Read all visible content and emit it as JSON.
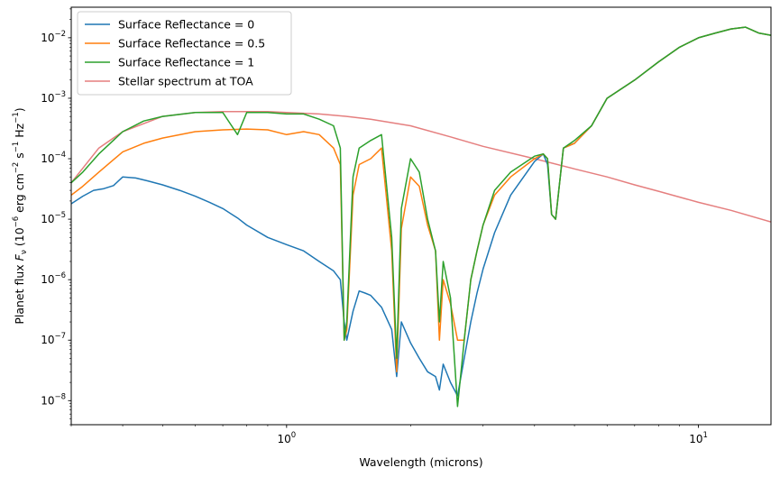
{
  "chart_data": {
    "type": "line",
    "xlabel": "Wavelength (microns)",
    "ylabel": "Planet flux F_ν (10⁻⁶ erg cm⁻² s⁻¹ Hz⁻¹)",
    "ylabel_parts": {
      "pre": "Planet flux ",
      "sym": "F",
      "sub": "ν",
      "open": " (10",
      "e1": "−6",
      "mid1": " erg cm",
      "e2": "−2",
      "mid2": " s",
      "e3": "−1",
      "mid3": " Hz",
      "e4": "−1",
      "close": ")"
    },
    "x_scale": "log",
    "y_scale": "log",
    "xlim": [
      0.3,
      15
    ],
    "ylim": [
      4e-09,
      0.032
    ],
    "x_ticks": [
      {
        "value": 1,
        "base": "10",
        "exp": "0"
      },
      {
        "value": 10,
        "base": "10",
        "exp": "1"
      }
    ],
    "y_ticks": [
      {
        "value": 1e-08,
        "base": "10",
        "exp": "−8"
      },
      {
        "value": 1e-07,
        "base": "10",
        "exp": "−7"
      },
      {
        "value": 1e-06,
        "base": "10",
        "exp": "−6"
      },
      {
        "value": 1e-05,
        "base": "10",
        "exp": "−5"
      },
      {
        "value": 0.0001,
        "base": "10",
        "exp": "−4"
      },
      {
        "value": 0.001,
        "base": "10",
        "exp": "−3"
      },
      {
        "value": 0.01,
        "base": "10",
        "exp": "−2"
      }
    ],
    "grid": false,
    "legend_position": "top-left",
    "series": [
      {
        "name": "Surface Reflectance = 0",
        "color": "#1f77b4",
        "x": [
          0.3,
          0.32,
          0.34,
          0.36,
          0.38,
          0.4,
          0.43,
          0.46,
          0.5,
          0.55,
          0.6,
          0.65,
          0.7,
          0.76,
          0.8,
          0.9,
          1.0,
          1.1,
          1.2,
          1.3,
          1.35,
          1.38,
          1.4,
          1.45,
          1.5,
          1.55,
          1.6,
          1.7,
          1.8,
          1.85,
          1.9,
          2.0,
          2.1,
          2.2,
          2.3,
          2.35,
          2.4,
          2.5,
          2.6,
          2.7,
          2.8,
          2.9,
          3.0,
          3.2,
          3.5,
          4.0,
          4.2,
          4.3,
          4.4,
          4.5,
          4.7,
          5.0,
          5.5,
          6.0,
          7.0,
          8.0,
          9.0,
          10.0,
          11.0,
          12.0,
          13.0,
          14.0,
          15.0
        ],
        "y": [
          1.8e-05,
          2.4e-05,
          3e-05,
          3.2e-05,
          3.6e-05,
          5e-05,
          4.8e-05,
          4.3e-05,
          3.7e-05,
          3e-05,
          2.4e-05,
          1.9e-05,
          1.5e-05,
          1.05e-05,
          8e-06,
          5e-06,
          3.8e-06,
          3e-06,
          2e-06,
          1.4e-06,
          1e-06,
          2e-07,
          1e-07,
          3e-07,
          6.5e-07,
          6e-07,
          5.5e-07,
          3.5e-07,
          1.5e-07,
          2.5e-08,
          2e-07,
          9e-08,
          5e-08,
          3e-08,
          2.5e-08,
          1.5e-08,
          4e-08,
          2e-08,
          1.2e-08,
          5e-08,
          2e-07,
          6e-07,
          1.5e-06,
          6e-06,
          2.5e-05,
          9e-05,
          0.00012,
          8e-05,
          1.2e-05,
          1e-05,
          0.00015,
          0.00018,
          0.00035,
          0.001,
          0.002,
          0.004,
          0.007,
          0.01,
          0.012,
          0.014,
          0.015,
          0.012,
          0.011
        ]
      },
      {
        "name": "Surface Reflectance = 0.5",
        "color": "#ff7f0e",
        "x": [
          0.3,
          0.32,
          0.35,
          0.4,
          0.45,
          0.5,
          0.6,
          0.7,
          0.8,
          0.9,
          1.0,
          1.1,
          1.2,
          1.3,
          1.35,
          1.38,
          1.4,
          1.45,
          1.5,
          1.6,
          1.7,
          1.8,
          1.85,
          1.9,
          2.0,
          2.1,
          2.2,
          2.3,
          2.35,
          2.4,
          2.5,
          2.6,
          2.7,
          2.8,
          2.9,
          3.0,
          3.2,
          3.5,
          4.0,
          4.2,
          4.3,
          4.4,
          4.5,
          4.7,
          5.0,
          5.5,
          6.0,
          7.0,
          8.0,
          9.0,
          10.0,
          11.0,
          12.0,
          13.0,
          14.0,
          15.0
        ],
        "y": [
          2.5e-05,
          3.5e-05,
          6e-05,
          0.00013,
          0.00018,
          0.00022,
          0.00028,
          0.0003,
          0.00031,
          0.0003,
          0.00025,
          0.00028,
          0.00025,
          0.00015,
          8e-05,
          1e-07,
          1.5e-07,
          2.5e-05,
          8e-05,
          0.0001,
          0.00015,
          3e-06,
          3e-08,
          7e-06,
          5e-05,
          3.5e-05,
          8e-06,
          3e-06,
          1e-07,
          1e-06,
          4e-07,
          1e-07,
          1e-07,
          1e-06,
          3e-06,
          8e-06,
          2.5e-05,
          5e-05,
          0.0001,
          0.00012,
          0.0001,
          1.2e-05,
          1e-05,
          0.00015,
          0.00018,
          0.00035,
          0.001,
          0.002,
          0.004,
          0.007,
          0.01,
          0.012,
          0.014,
          0.015,
          0.012,
          0.011
        ]
      },
      {
        "name": "Surface Reflectance = 1",
        "color": "#2ca02c",
        "x": [
          0.3,
          0.32,
          0.35,
          0.4,
          0.45,
          0.5,
          0.6,
          0.7,
          0.76,
          0.8,
          0.9,
          1.0,
          1.1,
          1.2,
          1.3,
          1.35,
          1.38,
          1.4,
          1.45,
          1.5,
          1.6,
          1.7,
          1.8,
          1.85,
          1.9,
          2.0,
          2.1,
          2.2,
          2.3,
          2.35,
          2.4,
          2.5,
          2.6,
          2.7,
          2.8,
          2.9,
          3.0,
          3.2,
          3.5,
          4.0,
          4.2,
          4.3,
          4.4,
          4.5,
          4.7,
          5.0,
          5.5,
          6.0,
          7.0,
          8.0,
          9.0,
          10.0,
          11.0,
          12.0,
          13.0,
          14.0,
          15.0
        ],
        "y": [
          4e-05,
          6e-05,
          0.00012,
          0.00028,
          0.00042,
          0.0005,
          0.00058,
          0.00058,
          0.00025,
          0.00058,
          0.00058,
          0.00055,
          0.00055,
          0.00045,
          0.00035,
          0.00015,
          1e-07,
          2e-07,
          5e-05,
          0.00015,
          0.0002,
          0.00025,
          5e-06,
          5e-08,
          1.5e-05,
          0.0001,
          6e-05,
          1e-05,
          3e-06,
          2e-07,
          2e-06,
          5e-07,
          8e-09,
          1e-07,
          1e-06,
          3e-06,
          8e-06,
          3e-05,
          6e-05,
          0.00011,
          0.00012,
          0.0001,
          1.2e-05,
          1e-05,
          0.00015,
          0.0002,
          0.00035,
          0.001,
          0.002,
          0.004,
          0.007,
          0.01,
          0.012,
          0.014,
          0.015,
          0.012,
          0.011
        ]
      },
      {
        "name": "Stellar spectrum at TOA",
        "color": "#e57f7f",
        "x": [
          0.3,
          0.35,
          0.4,
          0.5,
          0.6,
          0.7,
          0.8,
          0.9,
          1.0,
          1.2,
          1.4,
          1.6,
          2.0,
          2.5,
          3.0,
          4.0,
          5.0,
          6.0,
          7.0,
          8.0,
          10.0,
          12.0,
          15.0
        ],
        "y": [
          4e-05,
          0.00015,
          0.00028,
          0.0005,
          0.00058,
          0.0006,
          0.0006,
          0.0006,
          0.00058,
          0.00055,
          0.0005,
          0.00045,
          0.00035,
          0.00023,
          0.00016,
          0.0001,
          6.8e-05,
          5e-05,
          3.7e-05,
          2.9e-05,
          1.9e-05,
          1.4e-05,
          9e-06
        ]
      }
    ]
  }
}
